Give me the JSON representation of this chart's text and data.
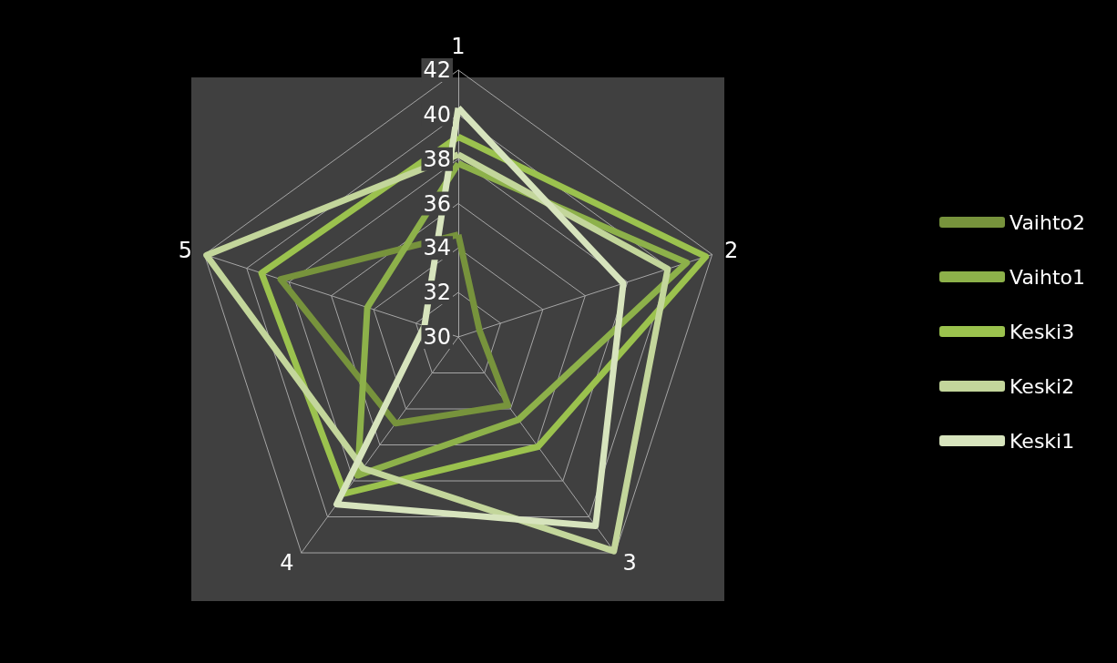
{
  "chart_data": {
    "type": "radar",
    "categories": [
      "1",
      "2",
      "3",
      "4",
      "5"
    ],
    "ylim": [
      30,
      42
    ],
    "yticks": [
      30,
      32,
      34,
      36,
      38,
      40,
      42
    ],
    "grid": true,
    "legend": "right",
    "marker": "none",
    "line_style": "solid",
    "series": [
      {
        "name": "Vaihto2",
        "color": "#77933c",
        "values": [
          34.6,
          31,
          33.8,
          34.8,
          38.4
        ]
      },
      {
        "name": "Vaihto1",
        "color": "#8db14a",
        "values": [
          37.8,
          40.8,
          34.6,
          37.7,
          34.3
        ]
      },
      {
        "name": "Keski3",
        "color": "#9bc24e",
        "values": [
          39,
          41.7,
          36.1,
          38.7,
          39.3
        ]
      },
      {
        "name": "Keski2",
        "color": "#c3d69b",
        "values": [
          38.2,
          39.9,
          41.9,
          37.3,
          41.9
        ]
      },
      {
        "name": "Keski1",
        "color": "#d7e4bd",
        "values": [
          40.3,
          37.8,
          40.5,
          39.3,
          31.6
        ]
      }
    ]
  }
}
